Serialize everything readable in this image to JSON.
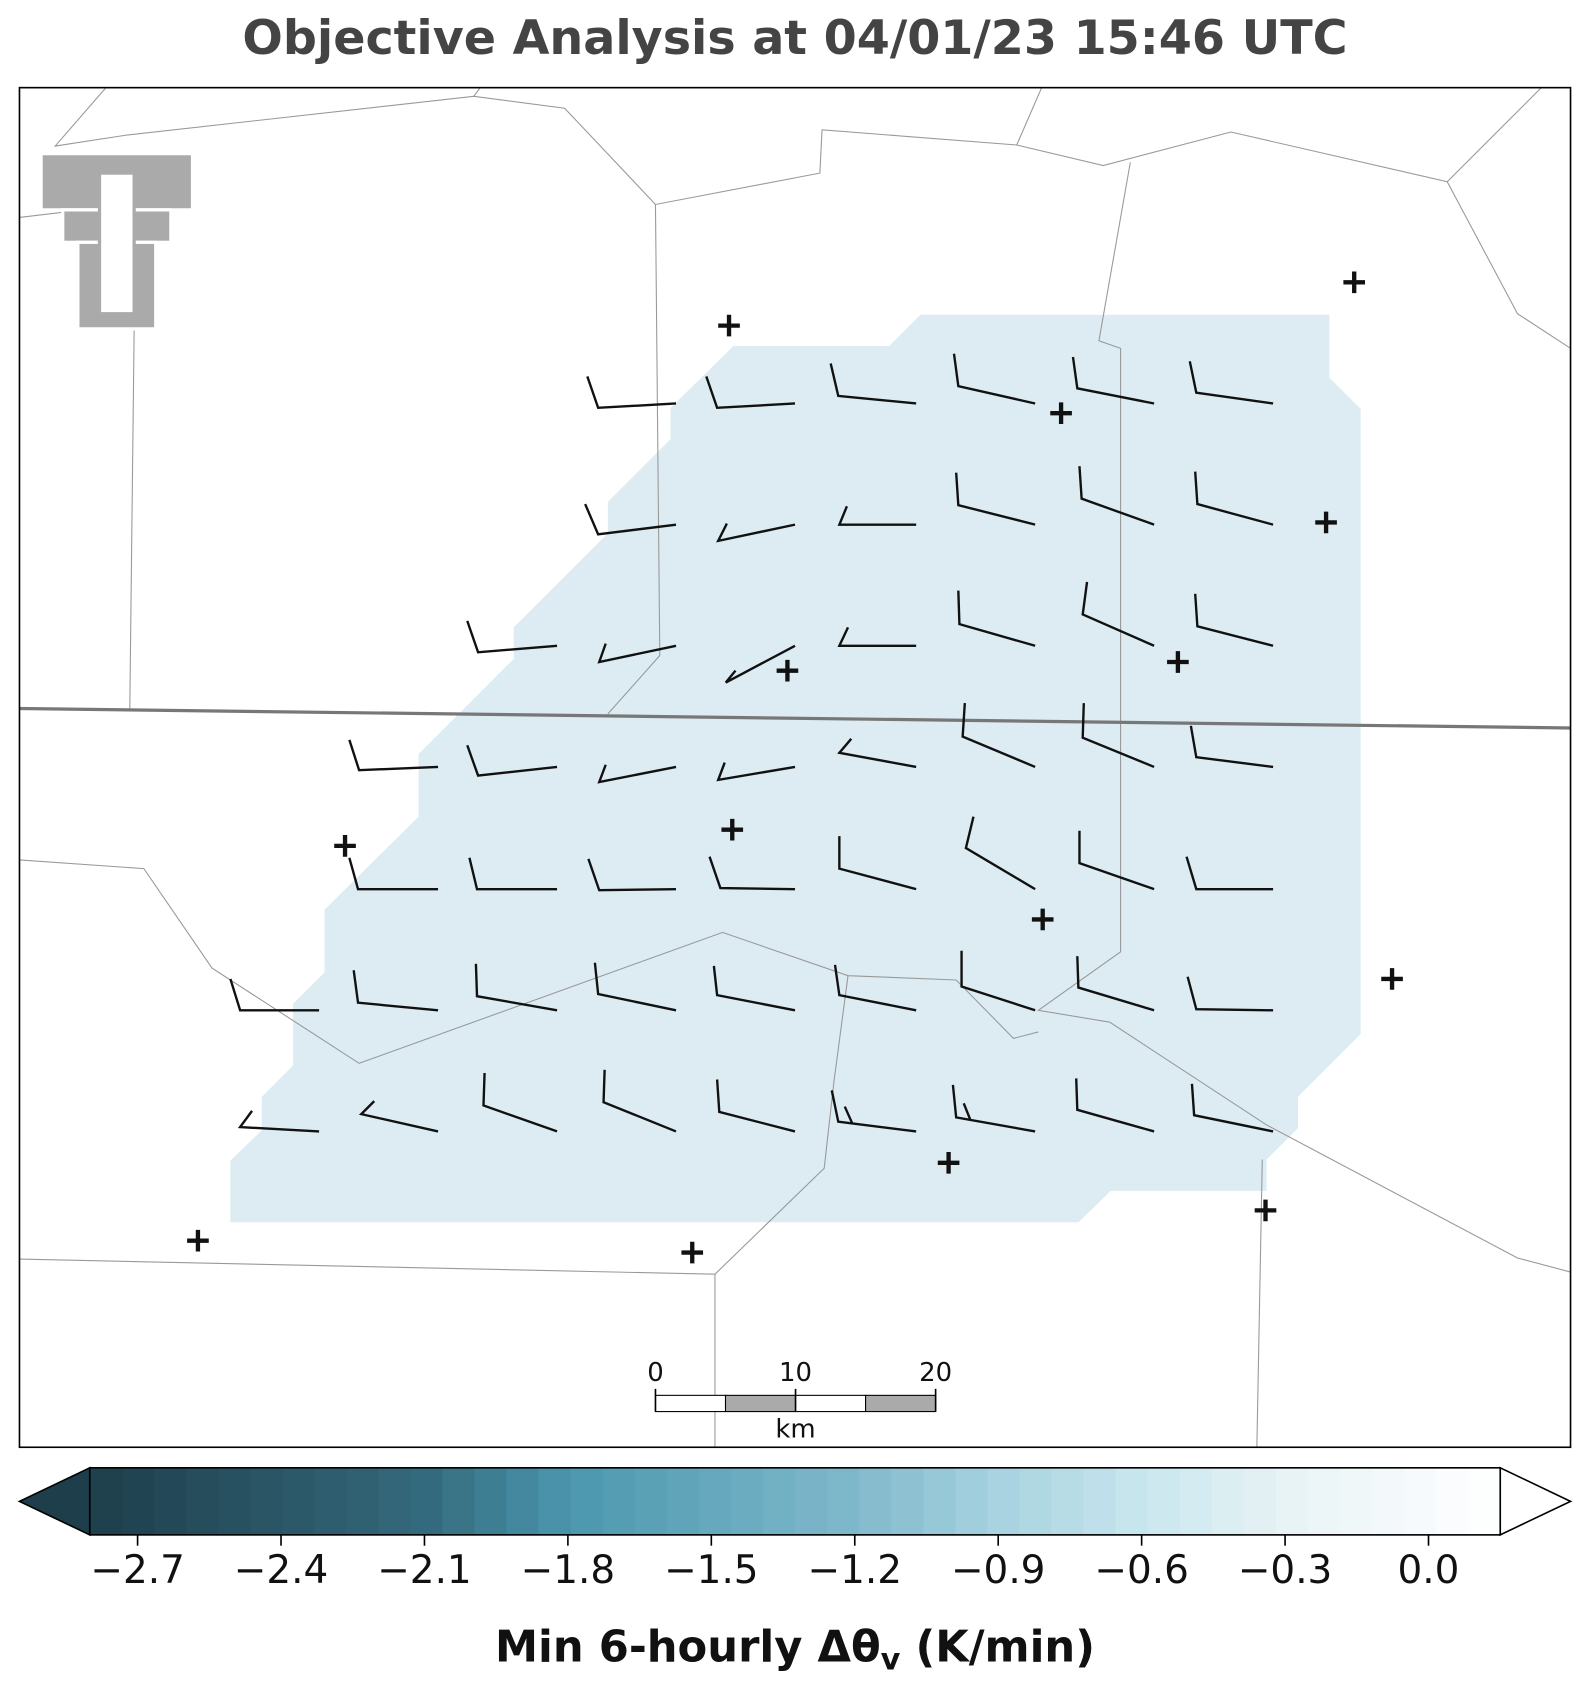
{
  "title": "Objective Analysis at 04/01/23 15:46 UTC",
  "scale_bar": {
    "ticks": [
      0,
      10,
      20
    ],
    "unit": "km"
  },
  "colorbar": {
    "label_main": "Min 6-hourly Δθ",
    "label_sub": "v",
    "label_unit": " (K/min)",
    "lim": [
      -2.8,
      0.15
    ],
    "ticks": [
      {
        "value": -2.7,
        "label": "−2.7"
      },
      {
        "value": -2.4,
        "label": "−2.4"
      },
      {
        "value": -2.1,
        "label": "−2.1"
      },
      {
        "value": -1.8,
        "label": "−1.8"
      },
      {
        "value": -1.5,
        "label": "−1.5"
      },
      {
        "value": -1.2,
        "label": "−1.2"
      },
      {
        "value": -0.9,
        "label": "−0.9"
      },
      {
        "value": -0.6,
        "label": "−0.6"
      },
      {
        "value": -0.3,
        "label": "−0.3"
      },
      {
        "value": 0,
        "label": "0.0"
      }
    ]
  }
}
